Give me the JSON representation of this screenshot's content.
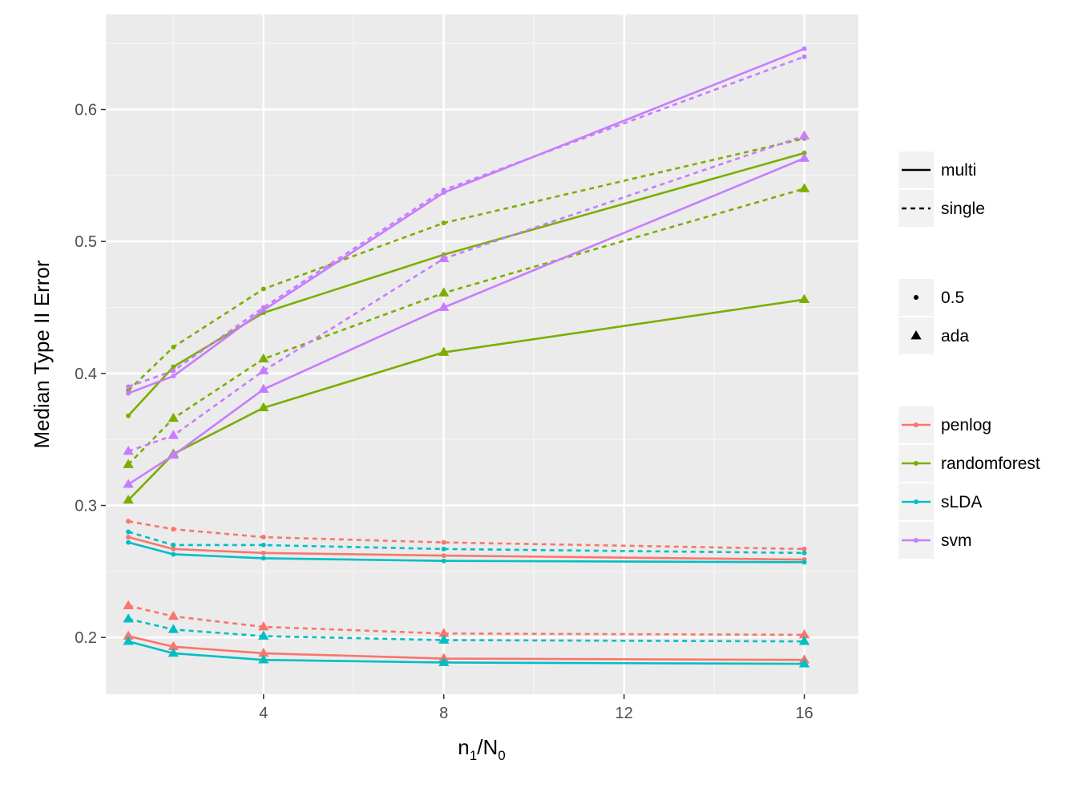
{
  "chart_data": {
    "type": "line",
    "title": "",
    "xlabel": "n1/N0",
    "xlabel_parts": {
      "n": "n",
      "sub1": "1",
      "slash": "/N",
      "sub0": "0"
    },
    "ylabel": "Median Type II Error",
    "xlim": [
      0.5,
      17.2
    ],
    "ylim": [
      0.157,
      0.672
    ],
    "x_ticks": [
      4,
      8,
      12,
      16
    ],
    "x_tick_labels": [
      "4",
      "8",
      "12",
      "16"
    ],
    "y_ticks": [
      0.2,
      0.3,
      0.4,
      0.5,
      0.6
    ],
    "y_tick_labels": [
      "0.2",
      "0.3",
      "0.4",
      "0.5",
      "0.6"
    ],
    "grid": true,
    "x": [
      1,
      2,
      4,
      8,
      16
    ],
    "colors": {
      "penlog": "#F8766D",
      "randomforest": "#7CAE00",
      "sLDA": "#00BFC4",
      "svm": "#C77CFF"
    },
    "legend": {
      "linetype": [
        {
          "key": "multi",
          "label": "multi"
        },
        {
          "key": "single",
          "label": "single"
        }
      ],
      "shape": [
        {
          "key": "point",
          "label": "0.5"
        },
        {
          "key": "triangle",
          "label": "ada"
        }
      ],
      "color": [
        {
          "key": "penlog",
          "label": "penlog"
        },
        {
          "key": "randomforest",
          "label": "randomforest"
        },
        {
          "key": "sLDA",
          "label": "sLDA"
        },
        {
          "key": "svm",
          "label": "svm"
        }
      ]
    },
    "series": [
      {
        "name": "penlog multi 0.5",
        "method": "penlog",
        "linetype": "multi",
        "shape": "point",
        "values": [
          0.276,
          0.267,
          0.264,
          0.262,
          0.259
        ]
      },
      {
        "name": "penlog single 0.5",
        "method": "penlog",
        "linetype": "single",
        "shape": "point",
        "values": [
          0.288,
          0.282,
          0.276,
          0.272,
          0.267
        ]
      },
      {
        "name": "penlog multi ada",
        "method": "penlog",
        "linetype": "multi",
        "shape": "triangle",
        "values": [
          0.201,
          0.193,
          0.188,
          0.184,
          0.183
        ]
      },
      {
        "name": "penlog single ada",
        "method": "penlog",
        "linetype": "single",
        "shape": "triangle",
        "values": [
          0.224,
          0.216,
          0.208,
          0.203,
          0.202
        ]
      },
      {
        "name": "sLDA multi 0.5",
        "method": "sLDA",
        "linetype": "multi",
        "shape": "point",
        "values": [
          0.272,
          0.263,
          0.26,
          0.258,
          0.257
        ]
      },
      {
        "name": "sLDA single 0.5",
        "method": "sLDA",
        "linetype": "single",
        "shape": "point",
        "values": [
          0.28,
          0.27,
          0.27,
          0.267,
          0.264
        ]
      },
      {
        "name": "sLDA multi ada",
        "method": "sLDA",
        "linetype": "multi",
        "shape": "triangle",
        "values": [
          0.197,
          0.188,
          0.183,
          0.181,
          0.18
        ]
      },
      {
        "name": "sLDA single ada",
        "method": "sLDA",
        "linetype": "single",
        "shape": "triangle",
        "values": [
          0.214,
          0.206,
          0.201,
          0.198,
          0.197
        ]
      },
      {
        "name": "randomforest multi 0.5",
        "method": "randomforest",
        "linetype": "multi",
        "shape": "point",
        "values": [
          0.368,
          0.405,
          0.446,
          0.49,
          0.567
        ]
      },
      {
        "name": "randomforest single 0.5",
        "method": "randomforest",
        "linetype": "single",
        "shape": "point",
        "values": [
          0.387,
          0.42,
          0.464,
          0.514,
          0.578
        ]
      },
      {
        "name": "randomforest multi ada",
        "method": "randomforest",
        "linetype": "multi",
        "shape": "triangle",
        "values": [
          0.304,
          0.339,
          0.374,
          0.416,
          0.456
        ]
      },
      {
        "name": "randomforest single ada",
        "method": "randomforest",
        "linetype": "single",
        "shape": "triangle",
        "values": [
          0.331,
          0.366,
          0.411,
          0.461,
          0.54
        ]
      },
      {
        "name": "svm multi 0.5",
        "method": "svm",
        "linetype": "multi",
        "shape": "point",
        "values": [
          0.385,
          0.398,
          0.448,
          0.537,
          0.646
        ]
      },
      {
        "name": "svm single 0.5",
        "method": "svm",
        "linetype": "single",
        "shape": "point",
        "values": [
          0.39,
          0.402,
          0.45,
          0.539,
          0.64
        ]
      },
      {
        "name": "svm multi ada",
        "method": "svm",
        "linetype": "multi",
        "shape": "triangle",
        "values": [
          0.316,
          0.338,
          0.388,
          0.45,
          0.563
        ]
      },
      {
        "name": "svm single ada",
        "method": "svm",
        "linetype": "single",
        "shape": "triangle",
        "values": [
          0.341,
          0.353,
          0.402,
          0.487,
          0.58
        ]
      }
    ]
  }
}
